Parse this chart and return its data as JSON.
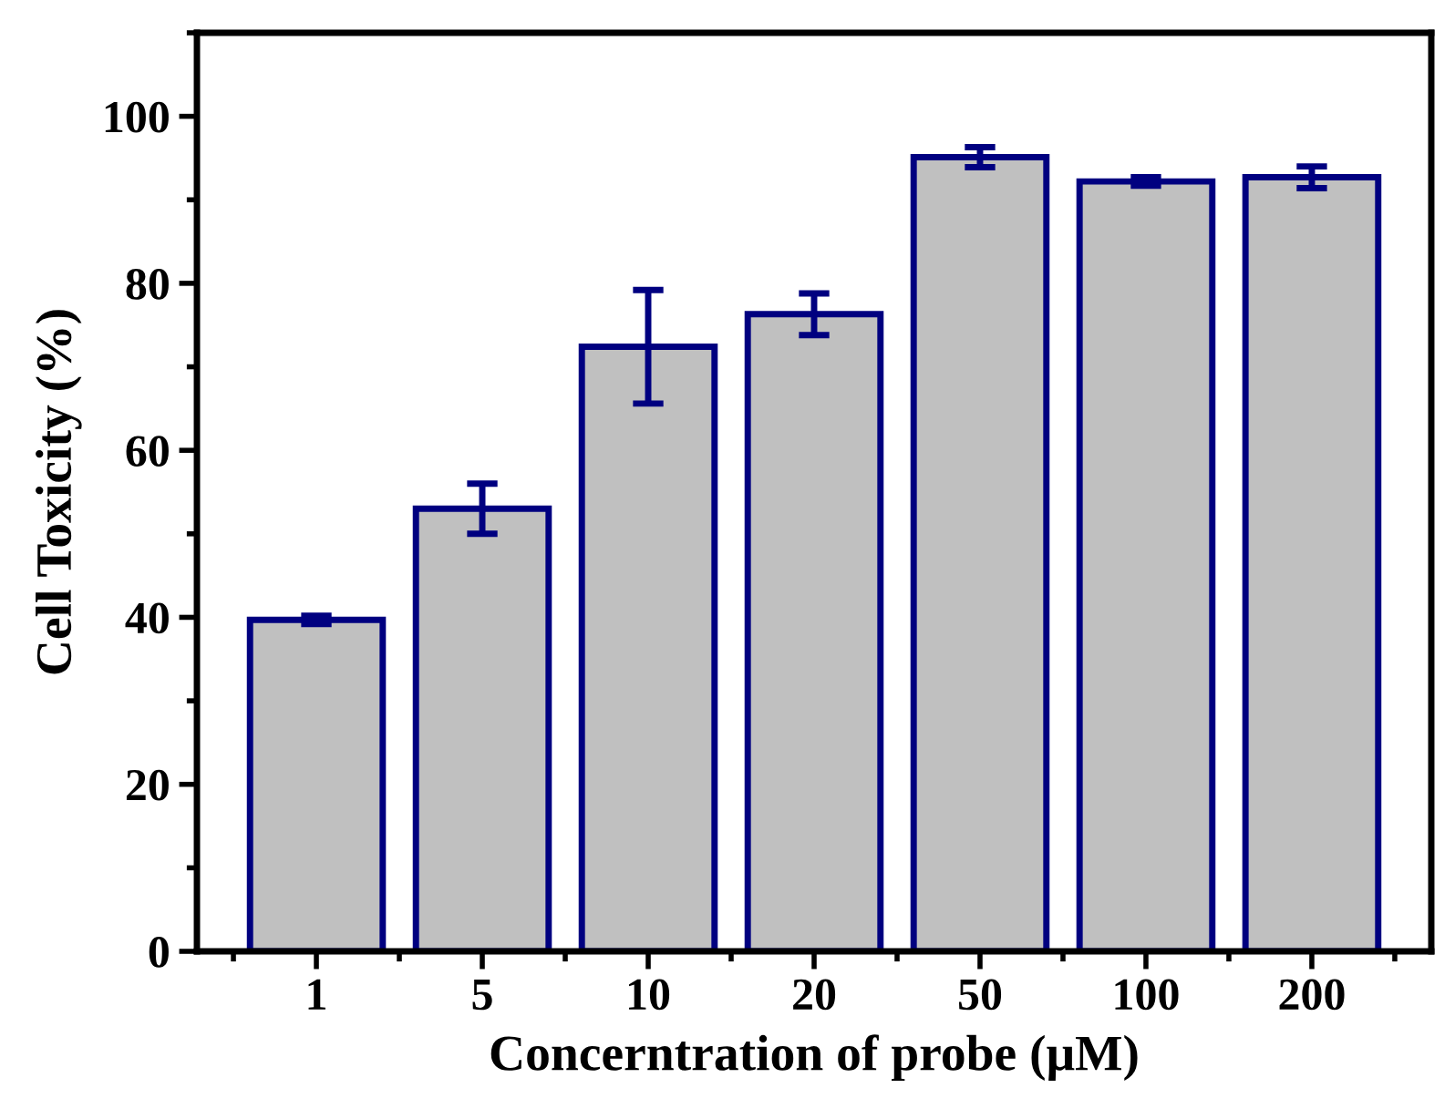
{
  "chart_data": {
    "type": "bar",
    "xlabel": "Concerntration of probe (μM)",
    "ylabel": "Cell Toxicity (%)",
    "categories": [
      "1",
      "5",
      "10",
      "20",
      "50",
      "100",
      "200"
    ],
    "series": [
      {
        "color": "#c0c0c0",
        "values": [
          39.7,
          53,
          72.4,
          76.3,
          95.1,
          92.2,
          92.7
        ],
        "errors": [
          0.5,
          3,
          6.8,
          2.5,
          1.2,
          0.5,
          1.3
        ]
      }
    ],
    "ylim": [
      0,
      110
    ],
    "yticks": [
      0,
      20,
      40,
      60,
      80,
      100
    ],
    "grid": false,
    "legend": false
  }
}
